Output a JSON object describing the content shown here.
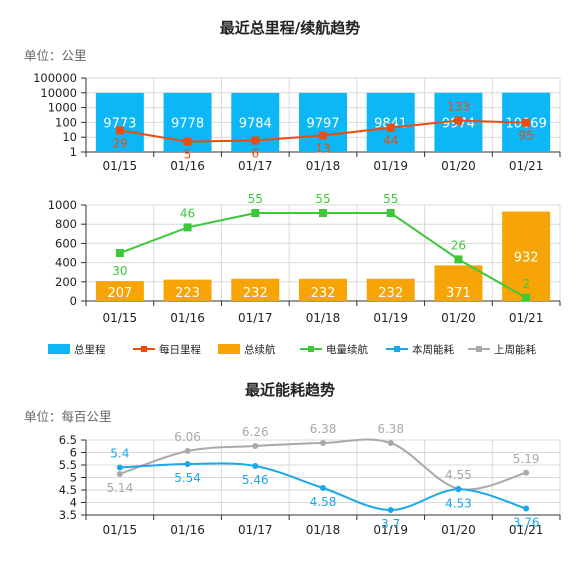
{
  "header": {
    "mileage_title": "最近总里程/续航趋势",
    "mileage_unit": "单位：公里",
    "energy_title": "最近能耗趋势",
    "energy_unit": "单位：每百公里"
  },
  "legend": [
    {
      "label": "总里程",
      "shape": "bar",
      "color": "#0DB7F5"
    },
    {
      "label": "每日里程",
      "shape": "line",
      "color": "#EE4B10"
    },
    {
      "label": "总续航",
      "shape": "bar",
      "color": "#F7A506"
    },
    {
      "label": "电量续航",
      "shape": "line",
      "color": "#3DC83A"
    },
    {
      "label": "本周能耗",
      "shape": "line",
      "color": "#1AA9E8"
    },
    {
      "label": "上周能耗",
      "shape": "line",
      "color": "#A9A9A9"
    }
  ],
  "chart_data": [
    {
      "type": "bar",
      "title": "最近总里程/续航趋势",
      "ylabel": "单位：公里",
      "yscale": "log",
      "ylim": [
        1,
        100000
      ],
      "yticks": [
        "1",
        "10",
        "100",
        "1000",
        "10000",
        "100000"
      ],
      "categories": [
        "01/15",
        "01/16",
        "01/17",
        "01/18",
        "01/19",
        "01/20",
        "01/21"
      ],
      "series": [
        {
          "name": "总里程",
          "kind": "bar",
          "color": "#0DB7F5",
          "values": [
            9773,
            9778,
            9784,
            9797,
            9841,
            9974,
            10069
          ]
        },
        {
          "name": "每日里程",
          "kind": "line",
          "color": "#EE4B10",
          "values": [
            29,
            5,
            6,
            13,
            44,
            133,
            95
          ]
        }
      ]
    },
    {
      "type": "bar",
      "yscale": "linear",
      "ylim": [
        0,
        1000
      ],
      "yticks": [
        "0",
        "200",
        "400",
        "600",
        "800",
        "1000"
      ],
      "categories": [
        "01/15",
        "01/16",
        "01/17",
        "01/18",
        "01/19",
        "01/20",
        "01/21"
      ],
      "series": [
        {
          "name": "总续航",
          "kind": "bar",
          "color": "#F7A506",
          "values": [
            207,
            223,
            232,
            232,
            232,
            371,
            932
          ]
        },
        {
          "name": "电量续航",
          "kind": "line",
          "color": "#3DC83A",
          "values": [
            30,
            46,
            55,
            55,
            55,
            26,
            2
          ]
        }
      ]
    },
    {
      "type": "line",
      "title": "最近能耗趋势",
      "ylabel": "单位：每百公里",
      "ylim": [
        3.5,
        6.5
      ],
      "yticks": [
        "3.5",
        "4",
        "4.5",
        "5",
        "5.5",
        "6",
        "6.5"
      ],
      "categories": [
        "01/15",
        "01/16",
        "01/17",
        "01/18",
        "01/19",
        "01/20",
        "01/21"
      ],
      "series": [
        {
          "name": "本周能耗",
          "kind": "line",
          "color": "#1AA9E8",
          "values": [
            5.4,
            5.54,
            5.46,
            4.58,
            3.7,
            4.53,
            3.76
          ]
        },
        {
          "name": "上周能耗",
          "kind": "line",
          "color": "#A9A9A9",
          "values": [
            5.14,
            6.06,
            6.26,
            6.38,
            6.38,
            4.55,
            5.19
          ]
        }
      ]
    }
  ]
}
